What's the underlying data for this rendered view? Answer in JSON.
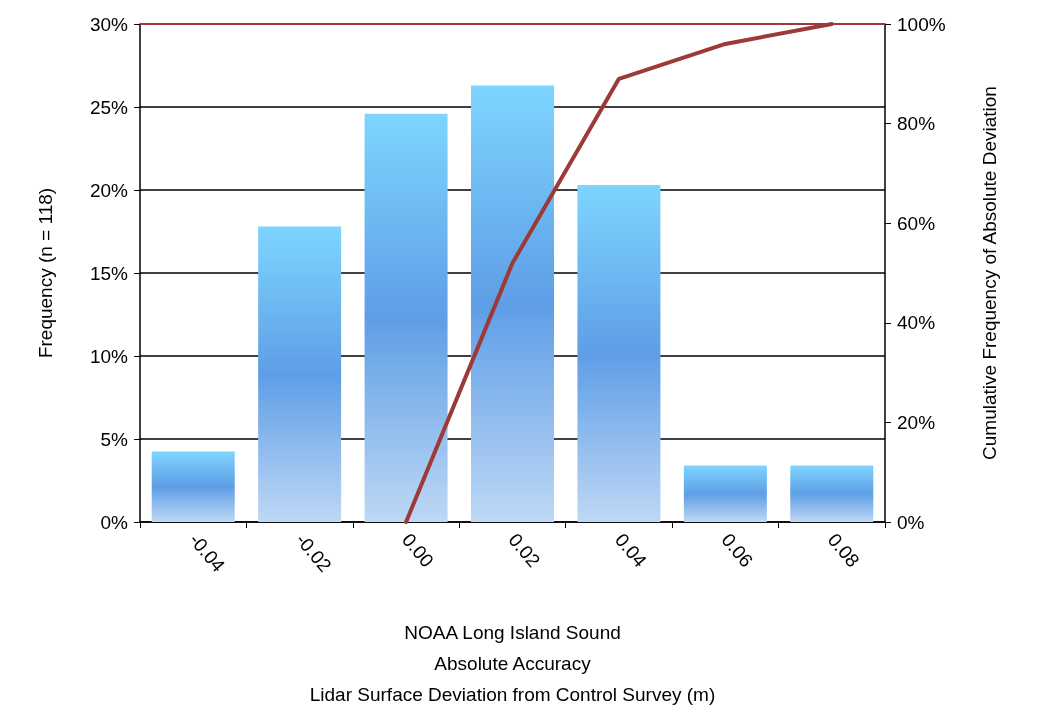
{
  "chart_data": {
    "type": "bar",
    "xlabel": "NOAA Long Island Sound\nAbsolute Accuracy\nLidar Surface Deviation from Control Survey (m)",
    "ylabel": "Frequency (n = 118)",
    "y2label": "Cumulative Frequency of Absolute Deviation",
    "categories": [
      "-0.04",
      "-0.02",
      "0.00",
      "0.02",
      "0.04",
      "0.06",
      "0.08"
    ],
    "series": [
      {
        "color": "#5e9ee6",
        "values": [
          4.24,
          17.8,
          24.6,
          26.3,
          20.3,
          3.4,
          3.4
        ]
      },
      {
        "type": "line",
        "axis": "y2",
        "color": "#9b3a38",
        "values": [
          null,
          null,
          0,
          52,
          89,
          96,
          100
        ]
      }
    ],
    "ylim": [
      0,
      30
    ],
    "yticks": [
      {
        "value": 0,
        "label": "0%"
      },
      {
        "value": 5,
        "label": "5%"
      },
      {
        "value": 10,
        "label": "10%"
      },
      {
        "value": 15,
        "label": "15%"
      },
      {
        "value": 20,
        "label": "20%"
      },
      {
        "value": 25,
        "label": "25%"
      },
      {
        "value": 30,
        "label": "30%"
      }
    ],
    "y2lim": [
      0,
      100
    ],
    "y2ticks": [
      {
        "value": 0,
        "label": "0%"
      },
      {
        "value": 20,
        "label": "20%"
      },
      {
        "value": 40,
        "label": "40%"
      },
      {
        "value": 60,
        "label": "60%"
      },
      {
        "value": 80,
        "label": "80%"
      },
      {
        "value": 100,
        "label": "100%"
      }
    ],
    "ref_lines": [
      {
        "axis": "y2",
        "value": 100,
        "color": "#9b3a38"
      }
    ],
    "grid": "y",
    "marker": "none"
  }
}
